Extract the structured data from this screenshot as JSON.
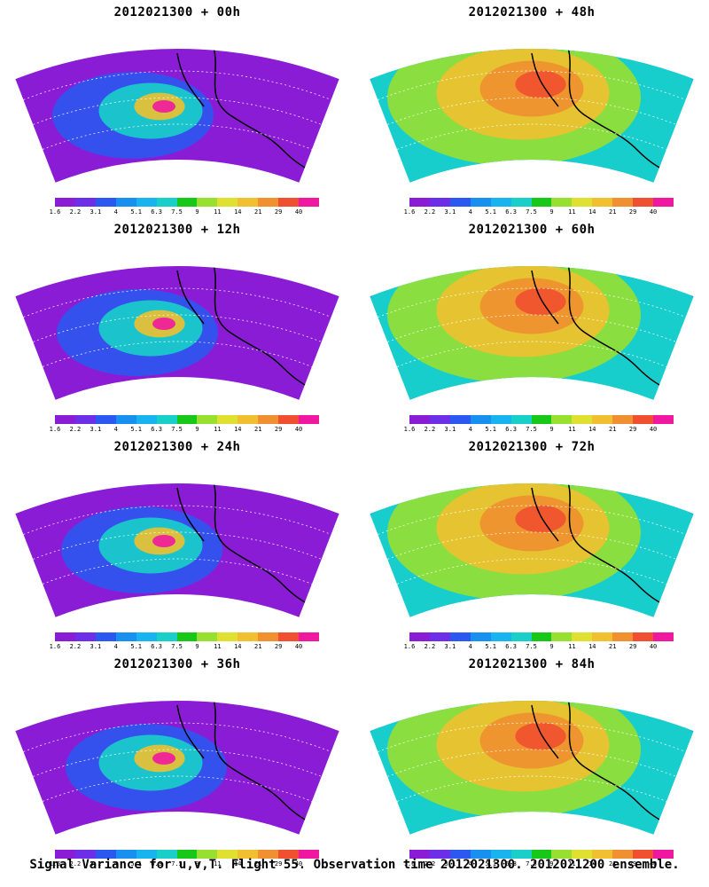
{
  "panels": [
    {
      "title": "2012021300 + 00h",
      "col": 0,
      "row": 0
    },
    {
      "title": "2012021300 + 48h",
      "col": 1,
      "row": 0
    },
    {
      "title": "2012021300 + 12h",
      "col": 0,
      "row": 1
    },
    {
      "title": "2012021300 + 60h",
      "col": 1,
      "row": 1
    },
    {
      "title": "2012021300 + 24h",
      "col": 0,
      "row": 2
    },
    {
      "title": "2012021300 + 72h",
      "col": 1,
      "row": 2
    },
    {
      "title": "2012021300 + 36h",
      "col": 0,
      "row": 3
    },
    {
      "title": "2012021300 + 84h",
      "col": 1,
      "row": 3
    }
  ],
  "colorbar": {
    "labels": [
      "1.6",
      "2.2",
      "3.1",
      "4",
      "5.1",
      "6.3",
      "7.5",
      "9",
      "11",
      "14",
      "21",
      "29",
      "40"
    ],
    "colors": [
      "#8b1cd6",
      "#6d2ee8",
      "#2b58f0",
      "#1890f0",
      "#18b4f0",
      "#18d0c8",
      "#18c818",
      "#98e030",
      "#e0e030",
      "#f0c030",
      "#f09030",
      "#f05030",
      "#f018a0"
    ]
  },
  "caption": "Signal Variance for u,v,T. Flight 55. Observation time 2012021300. 2012021200 ensemble."
}
